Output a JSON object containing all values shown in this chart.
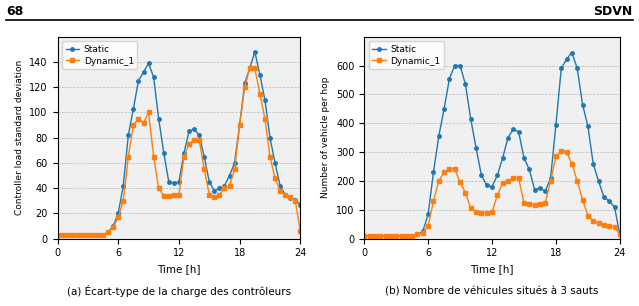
{
  "left": {
    "caption": "(a) Écart-type de la charge des contrôleurs",
    "ylabel": "Controller load standard deviation",
    "xlabel": "Time [h]",
    "xlim": [
      0,
      24
    ],
    "ylim": [
      0,
      160
    ],
    "yticks": [
      0,
      20,
      40,
      60,
      80,
      100,
      120,
      140
    ],
    "xticks": [
      0,
      6,
      12,
      18,
      24
    ],
    "static_x": [
      0,
      0.5,
      1,
      1.5,
      2,
      2.5,
      3,
      3.5,
      4,
      4.5,
      5,
      5.5,
      6,
      6.5,
      7,
      7.5,
      8,
      8.5,
      9,
      9.5,
      10,
      10.5,
      11,
      11.5,
      12,
      12.5,
      13,
      13.5,
      14,
      14.5,
      15,
      15.5,
      16,
      16.5,
      17,
      17.5,
      18,
      18.5,
      19,
      19.5,
      20,
      20.5,
      21,
      21.5,
      22,
      22.5,
      23,
      23.5,
      24
    ],
    "static_y": [
      3,
      3,
      3,
      3,
      3,
      3,
      3,
      3,
      3,
      3,
      5,
      10,
      20,
      42,
      82,
      103,
      125,
      132,
      139,
      128,
      95,
      68,
      45,
      44,
      45,
      68,
      85,
      87,
      82,
      65,
      45,
      38,
      40,
      42,
      50,
      60,
      90,
      123,
      135,
      148,
      130,
      110,
      80,
      60,
      42,
      35,
      32,
      31,
      27
    ],
    "dynamic_x": [
      0,
      0.5,
      1,
      1.5,
      2,
      2.5,
      3,
      3.5,
      4,
      4.5,
      5,
      5.5,
      6,
      6.5,
      7,
      7.5,
      8,
      8.5,
      9,
      9.5,
      10,
      10.5,
      11,
      11.5,
      12,
      12.5,
      13,
      13.5,
      14,
      14.5,
      15,
      15.5,
      16,
      16.5,
      17,
      17.5,
      18,
      18.5,
      19,
      19.5,
      20,
      20.5,
      21,
      21.5,
      22,
      22.5,
      23,
      23.5,
      24
    ],
    "dynamic_y": [
      3,
      3,
      3,
      3,
      3,
      3,
      3,
      3,
      3,
      3,
      5,
      9,
      17,
      30,
      65,
      90,
      95,
      92,
      100,
      65,
      40,
      34,
      34,
      35,
      35,
      65,
      75,
      78,
      78,
      55,
      35,
      33,
      35,
      40,
      42,
      55,
      90,
      120,
      135,
      135,
      115,
      95,
      65,
      48,
      38,
      35,
      33,
      30,
      6
    ]
  },
  "right": {
    "caption": "(b) Nombre de véhicules situés à 3 sauts",
    "ylabel": "Number of vehicle per hop",
    "xlabel": "Time [h]",
    "xlim": [
      0,
      24
    ],
    "ylim": [
      0,
      700
    ],
    "yticks": [
      0,
      100,
      200,
      300,
      400,
      500,
      600
    ],
    "xticks": [
      0,
      6,
      12,
      18,
      24
    ],
    "static_x": [
      0,
      0.5,
      1,
      1.5,
      2,
      2.5,
      3,
      3.5,
      4,
      4.5,
      5,
      5.5,
      6,
      6.5,
      7,
      7.5,
      8,
      8.5,
      9,
      9.5,
      10,
      10.5,
      11,
      11.5,
      12,
      12.5,
      13,
      13.5,
      14,
      14.5,
      15,
      15.5,
      16,
      16.5,
      17,
      17.5,
      18,
      18.5,
      19,
      19.5,
      20,
      20.5,
      21,
      21.5,
      22,
      22.5,
      23,
      23.5,
      24
    ],
    "static_y": [
      10,
      10,
      10,
      10,
      10,
      10,
      10,
      10,
      10,
      10,
      15,
      25,
      85,
      230,
      355,
      450,
      555,
      600,
      600,
      535,
      415,
      315,
      220,
      185,
      180,
      220,
      280,
      350,
      380,
      370,
      280,
      240,
      170,
      175,
      165,
      210,
      395,
      590,
      622,
      645,
      590,
      465,
      390,
      260,
      200,
      145,
      130,
      110,
      15
    ],
    "dynamic_x": [
      0,
      0.5,
      1,
      1.5,
      2,
      2.5,
      3,
      3.5,
      4,
      4.5,
      5,
      5.5,
      6,
      6.5,
      7,
      7.5,
      8,
      8.5,
      9,
      9.5,
      10,
      10.5,
      11,
      11.5,
      12,
      12.5,
      13,
      13.5,
      14,
      14.5,
      15,
      15.5,
      16,
      16.5,
      17,
      17.5,
      18,
      18.5,
      19,
      19.5,
      20,
      20.5,
      21,
      21.5,
      22,
      22.5,
      23,
      23.5,
      24
    ],
    "dynamic_y": [
      10,
      10,
      10,
      10,
      10,
      10,
      10,
      10,
      10,
      10,
      15,
      20,
      45,
      130,
      200,
      230,
      240,
      242,
      195,
      160,
      105,
      92,
      90,
      90,
      92,
      150,
      193,
      200,
      210,
      210,
      125,
      120,
      117,
      120,
      125,
      200,
      285,
      303,
      300,
      260,
      200,
      135,
      80,
      62,
      53,
      48,
      45,
      40,
      15
    ]
  },
  "static_color": "#1f77b4",
  "dynamic_color": "#ff7f0e",
  "page_number": "68",
  "chapter": "SDVN",
  "plot_bg": "#f0f0f0"
}
